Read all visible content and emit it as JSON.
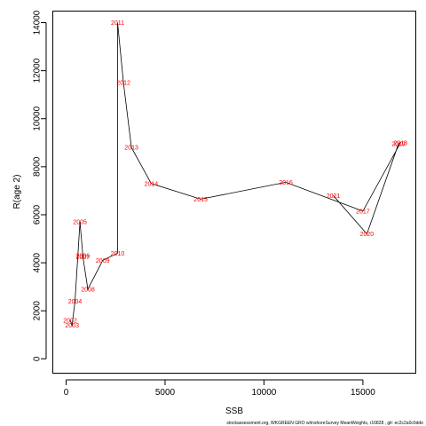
{
  "chart_data": {
    "type": "line",
    "xlabel": "SSB",
    "ylabel": "R(age 2)",
    "xlim": [
      -650,
      17650
    ],
    "ylim": [
      -580,
      14500
    ],
    "x_ticks": [
      0,
      5000,
      10000,
      15000
    ],
    "y_ticks": [
      0,
      2000,
      4000,
      6000,
      8000,
      10000,
      12000,
      14000
    ],
    "points": [
      {
        "label": "2002",
        "x": 200,
        "y": 1600
      },
      {
        "label": "2003",
        "x": 300,
        "y": 1400
      },
      {
        "label": "2004",
        "x": 450,
        "y": 2400
      },
      {
        "label": "2005",
        "x": 700,
        "y": 5700
      },
      {
        "label": "2006",
        "x": 850,
        "y": 4300
      },
      {
        "label": "2007",
        "x": 850,
        "y": 4250
      },
      {
        "label": "2008",
        "x": 1100,
        "y": 2900
      },
      {
        "label": "2009",
        "x": 1850,
        "y": 4100
      },
      {
        "label": "2010",
        "x": 2600,
        "y": 4400
      },
      {
        "label": "2011",
        "x": 2600,
        "y": 14000
      },
      {
        "label": "2012",
        "x": 2900,
        "y": 11500
      },
      {
        "label": "2013",
        "x": 3300,
        "y": 8800
      },
      {
        "label": "2014",
        "x": 4300,
        "y": 7300
      },
      {
        "label": "2015",
        "x": 6800,
        "y": 6650
      },
      {
        "label": "2016",
        "x": 11100,
        "y": 7350
      },
      {
        "label": "2017",
        "x": 15000,
        "y": 6150
      },
      {
        "label": "2018",
        "x": 16900,
        "y": 9000
      },
      {
        "label": "2019",
        "x": 16800,
        "y": 8950
      },
      {
        "label": "2020",
        "x": 15200,
        "y": 5200
      },
      {
        "label": "2021",
        "x": 13500,
        "y": 6800
      }
    ],
    "series_color": "#000000",
    "label_color": "#ff0000",
    "grid": false
  },
  "footer": {
    "text": "stockassessment.org,  WKGREEN  GRO  w/inshoreSurvey  MeanWeights,  r16828 ,  git:  ec2c2a0c6dde"
  }
}
